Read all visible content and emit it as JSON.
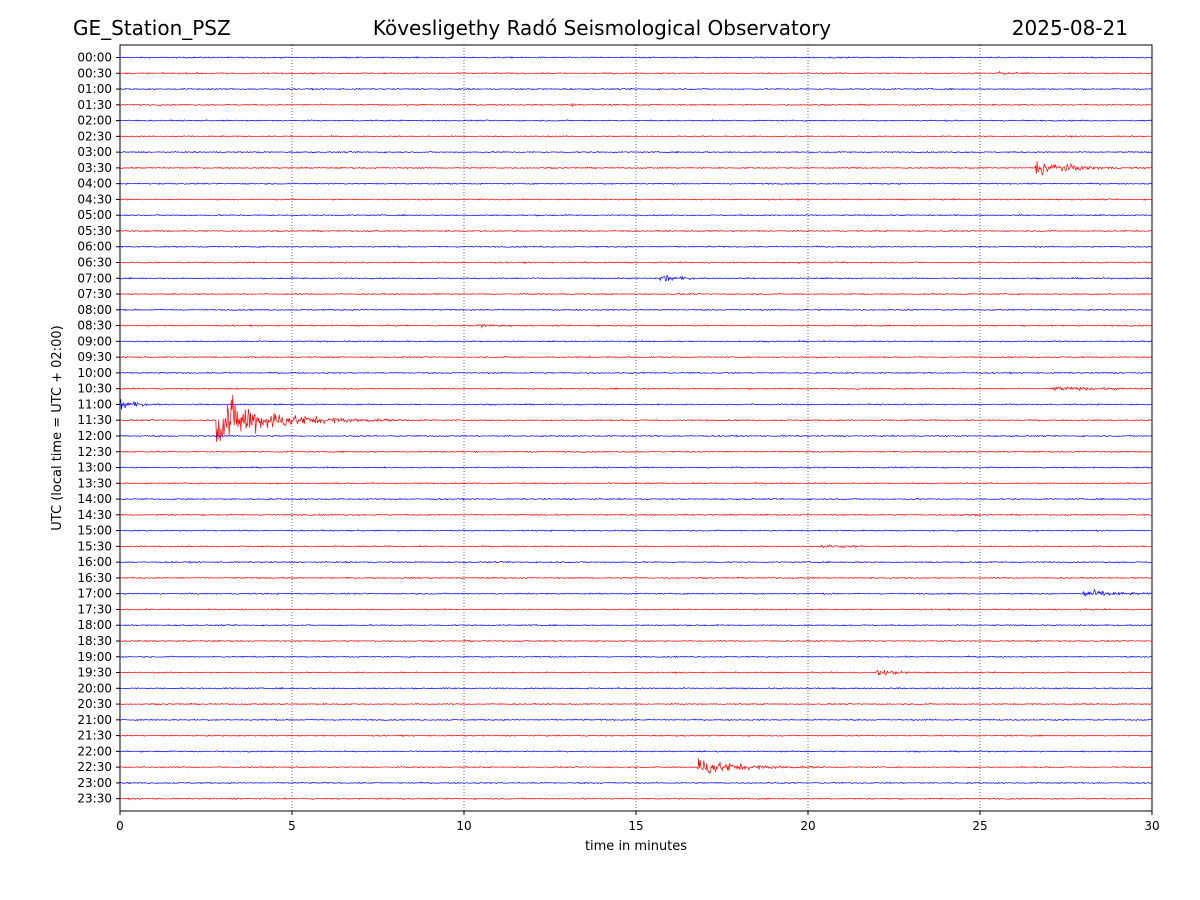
{
  "header": {
    "station": "GE_Station_PSZ",
    "observatory": "Kövesligethy Radó Seismological Observatory",
    "date": "2025-08-21"
  },
  "chart_data": {
    "type": "line",
    "title": "Kövesligethy Radó Seismological Observatory",
    "xlabel": "time in minutes",
    "ylabel": "UTC (local time = UTC + 02:00)",
    "xlim": [
      0,
      30
    ],
    "x_ticks": [
      0,
      5,
      10,
      15,
      20,
      25,
      30
    ],
    "grid": "vertical dotted lines at each 5 minutes",
    "colors": {
      "even_rows": "#0000ff",
      "odd_rows": "#ff0000"
    },
    "rows": [
      "00:00",
      "00:30",
      "01:00",
      "01:30",
      "02:00",
      "02:30",
      "03:00",
      "03:30",
      "04:00",
      "04:30",
      "05:00",
      "05:30",
      "06:00",
      "06:30",
      "07:00",
      "07:30",
      "08:00",
      "08:30",
      "09:00",
      "09:30",
      "10:00",
      "10:30",
      "11:00",
      "11:30",
      "12:00",
      "12:30",
      "13:00",
      "13:30",
      "14:00",
      "14:30",
      "15:00",
      "15:30",
      "16:00",
      "16:30",
      "17:00",
      "17:30",
      "18:00",
      "18:30",
      "19:00",
      "19:30",
      "20:00",
      "20:30",
      "21:00",
      "21:30",
      "22:00",
      "22:30",
      "23:00",
      "23:30"
    ],
    "events": [
      {
        "row": "00:30",
        "start_min": 25.5,
        "end_min": 26.5,
        "amplitude": 0.1,
        "decay_min": 0.5
      },
      {
        "row": "01:30",
        "start_min": 13.1,
        "end_min": 13.3,
        "amplitude": 0.35,
        "decay_min": 0.05
      },
      {
        "row": "03:30",
        "start_min": 26.6,
        "end_min": 30,
        "amplitude": 0.9,
        "decay_min": 0.8
      },
      {
        "row": "07:00",
        "start_min": 15.7,
        "end_min": 17.0,
        "amplitude": 0.45,
        "decay_min": 0.4
      },
      {
        "row": "08:30",
        "start_min": 10.4,
        "end_min": 11.5,
        "amplitude": 0.2,
        "decay_min": 0.4
      },
      {
        "row": "10:30",
        "start_min": 27.0,
        "end_min": 30,
        "amplitude": 0.15,
        "decay_min": 1.5
      },
      {
        "row": "11:00",
        "start_min": 0.0,
        "end_min": 1.2,
        "amplitude": 0.6,
        "decay_min": 0.35
      },
      {
        "row": "11:30",
        "start_min": 2.8,
        "end_min": 9.0,
        "amplitude": 2.8,
        "decay_min": 1.3
      },
      {
        "row": "14:30",
        "start_min": 24.2,
        "end_min": 25.0,
        "amplitude": 0.12,
        "decay_min": 0.4
      },
      {
        "row": "15:30",
        "start_min": 20.3,
        "end_min": 22.0,
        "amplitude": 0.12,
        "decay_min": 0.8
      },
      {
        "row": "17:00",
        "start_min": 28.0,
        "end_min": 30,
        "amplitude": 0.45,
        "decay_min": 0.7
      },
      {
        "row": "19:30",
        "start_min": 22.0,
        "end_min": 23.5,
        "amplitude": 0.3,
        "decay_min": 0.5
      },
      {
        "row": "22:30",
        "start_min": 16.8,
        "end_min": 21.0,
        "amplitude": 1.0,
        "decay_min": 0.9
      }
    ]
  }
}
